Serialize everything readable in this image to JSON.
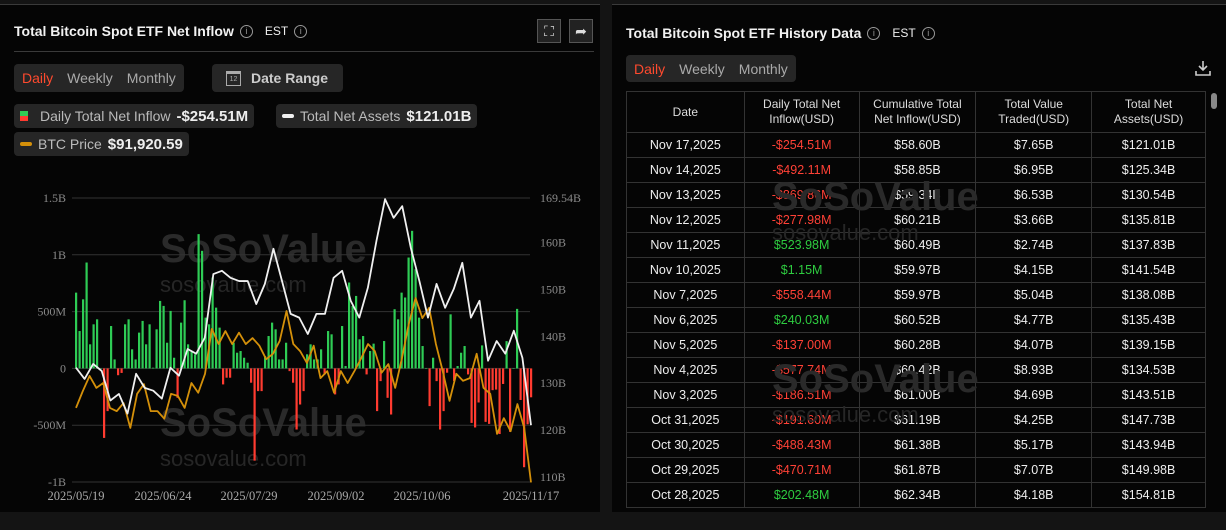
{
  "left": {
    "title": "Total Bitcoin Spot ETF Net Inflow",
    "timezone": "EST",
    "tabs": [
      "Daily",
      "Weekly",
      "Monthly"
    ],
    "active_tab": "Daily",
    "date_range_label": "Date Range",
    "calendar_day": "12",
    "legend": {
      "inflow_label": "Daily Total Net Inflow",
      "inflow_value": "-$254.51M",
      "assets_label": "Total Net Assets",
      "assets_value": "$121.01B",
      "price_label": "BTC Price",
      "price_value": "$91,920.59"
    },
    "watermark": {
      "brand": "SoSoValue",
      "site": "sosovalue.com"
    }
  },
  "chart_data": {
    "type": "bar+line",
    "x_ticks": [
      "2025/05/19",
      "2025/06/24",
      "2025/07/29",
      "2025/09/02",
      "2025/10/06",
      "2025/11/17"
    ],
    "left_axis": {
      "ticks": [
        "1.5B",
        "1B",
        "500M",
        "0",
        "-500M",
        "-1B"
      ],
      "tick_values": [
        1500,
        1000,
        500,
        0,
        -500,
        -1000
      ],
      "range": [
        -1000,
        1500
      ],
      "unit": "M USD"
    },
    "right_axis": {
      "ticks": [
        "169.54B",
        "160B",
        "150B",
        "140B",
        "130B",
        "120B",
        "110B"
      ],
      "tick_values": [
        169.54,
        160,
        150,
        140,
        130,
        120,
        110
      ],
      "range": [
        108.9,
        169.54
      ],
      "unit": "B USD"
    },
    "price_range": [
      92000,
      144500
    ],
    "grid": true,
    "colors": {
      "inflow_pos": "#2ecc55",
      "inflow_neg": "#ff3b30",
      "assets": "#f0f0f0",
      "price": "#d4900a"
    },
    "series": [
      {
        "name": "Daily Total Net Inflow",
        "type": "bar",
        "values": [
          667,
          329,
          608,
          932,
          212,
          388,
          432,
          0,
          -612,
          -376,
          373,
          79,
          -60,
          -40,
          388,
          432,
          168,
          79,
          315,
          418,
          212,
          388,
          6,
          344,
          594,
          550,
          226,
          506,
          94,
          -259,
          403,
          600,
          212,
          153,
          124,
          1182,
          1035,
          447,
          388,
          800,
          535,
          359,
          -141,
          -82,
          -82,
          226,
          138,
          153,
          94,
          50,
          -126,
          -812,
          -200,
          -200,
          109,
          285,
          403,
          344,
          79,
          79,
          226,
          -24,
          -126,
          -538,
          -318,
          -200,
          124,
          212,
          79,
          79,
          168,
          -53,
          329,
          300,
          -229,
          -141,
          373,
          21,
          756,
          550,
          638,
          256,
          285,
          -53,
          153,
          218,
          -376,
          -112,
          241,
          -259,
          -406,
          521,
          432,
          667,
          624,
          976,
          1211,
          873,
          447,
          197,
          0,
          -332,
          94,
          -112,
          -538,
          -376,
          -38,
          476,
          -112,
          21,
          138,
          197,
          -53,
          -480,
          -520,
          -300,
          202.48,
          -470.71,
          -488.43,
          -191.6,
          -186.51,
          -577.74,
          -137,
          240.03,
          -558.44,
          1.15,
          523.98,
          -277.98,
          -869.86,
          -492.11,
          -254.51
        ]
      },
      {
        "name": "Total Net Assets",
        "type": "line",
        "values": [
          133.3,
          130.9,
          134.1,
          132.6,
          126.3,
          127.7,
          123.5,
          132,
          129,
          128.4,
          126.7,
          133.3,
          131.6,
          137.3,
          136.3,
          139.7,
          153.3,
          154,
          152.5,
          151.8,
          151.8,
          146.9,
          151.2,
          158.7,
          151.8,
          144.8,
          144,
          140.5,
          144.8,
          144.8,
          152.5,
          154,
          147.6,
          144,
          150.4,
          160.4,
          169.3,
          165.3,
          167.8,
          158.9,
          151.8,
          144,
          151.2,
          146.1,
          150.1,
          155.7,
          144,
          147.6,
          134.8,
          139,
          136.3,
          141.2,
          135.4,
          121.01
        ]
      },
      {
        "name": "BTC Price",
        "type": "line",
        "values": [
          105.7,
          108.8,
          111.6,
          109.4,
          110.3,
          105.7,
          105.1,
          106.6,
          102,
          108.3,
          110.1,
          105.1,
          105.1,
          103.7,
          108.3,
          107.9,
          105.7,
          110.3,
          108.5,
          112,
          120.3,
          117.5,
          119.9,
          117.5,
          119.6,
          117.5,
          118.6,
          117.2,
          114.7,
          115.7,
          118.1,
          123.6,
          117.5,
          116.2,
          114,
          117.2,
          111.2,
          112.5,
          108.5,
          112.5,
          110.3,
          112.5,
          114.9,
          117.5,
          116.2,
          112.2,
          113.8,
          109.4,
          114.9,
          121.2,
          126,
          122.3,
          124.2,
          117.5,
          112.5,
          107,
          112,
          110.7,
          111.2,
          115.7,
          109.4,
          108.3,
          100.9,
          103.8,
          101.4,
          106.4,
          102,
          91.92
        ]
      }
    ]
  },
  "right": {
    "title": "Total Bitcoin Spot ETF History Data",
    "timezone": "EST",
    "tabs": [
      "Daily",
      "Weekly",
      "Monthly"
    ],
    "active_tab": "Daily",
    "columns": [
      [
        "Date",
        ""
      ],
      [
        "Daily Total Net",
        "Inflow(USD)"
      ],
      [
        "Cumulative Total",
        "Net Inflow(USD)"
      ],
      [
        "Total Value",
        "Traded(USD)"
      ],
      [
        "Total Net",
        "Assets(USD)"
      ]
    ],
    "rows": [
      [
        "Nov 17,2025",
        "-$254.51M",
        "$58.60B",
        "$7.65B",
        "$121.01B"
      ],
      [
        "Nov 14,2025",
        "-$492.11M",
        "$58.85B",
        "$6.95B",
        "$125.34B"
      ],
      [
        "Nov 13,2025",
        "-$869.86M",
        "$59.34B",
        "$6.53B",
        "$130.54B"
      ],
      [
        "Nov 12,2025",
        "-$277.98M",
        "$60.21B",
        "$3.66B",
        "$135.81B"
      ],
      [
        "Nov 11,2025",
        "$523.98M",
        "$60.49B",
        "$2.74B",
        "$137.83B"
      ],
      [
        "Nov 10,2025",
        "$1.15M",
        "$59.97B",
        "$4.15B",
        "$141.54B"
      ],
      [
        "Nov 7,2025",
        "-$558.44M",
        "$59.97B",
        "$5.04B",
        "$138.08B"
      ],
      [
        "Nov 6,2025",
        "$240.03M",
        "$60.52B",
        "$4.77B",
        "$135.43B"
      ],
      [
        "Nov 5,2025",
        "-$137.00M",
        "$60.28B",
        "$4.07B",
        "$139.15B"
      ],
      [
        "Nov 4,2025",
        "-$577.74M",
        "$60.42B",
        "$8.93B",
        "$134.53B"
      ],
      [
        "Nov 3,2025",
        "-$186.51M",
        "$61.00B",
        "$4.69B",
        "$143.51B"
      ],
      [
        "Oct 31,2025",
        "-$191.60M",
        "$61.19B",
        "$4.25B",
        "$147.73B"
      ],
      [
        "Oct 30,2025",
        "-$488.43M",
        "$61.38B",
        "$5.17B",
        "$143.94B"
      ],
      [
        "Oct 29,2025",
        "-$470.71M",
        "$61.87B",
        "$7.07B",
        "$149.98B"
      ],
      [
        "Oct 28,2025",
        "$202.48M",
        "$62.34B",
        "$4.18B",
        "$154.81B"
      ]
    ],
    "watermark": {
      "brand": "SoSoValue",
      "site": "sosovalue.com"
    }
  }
}
